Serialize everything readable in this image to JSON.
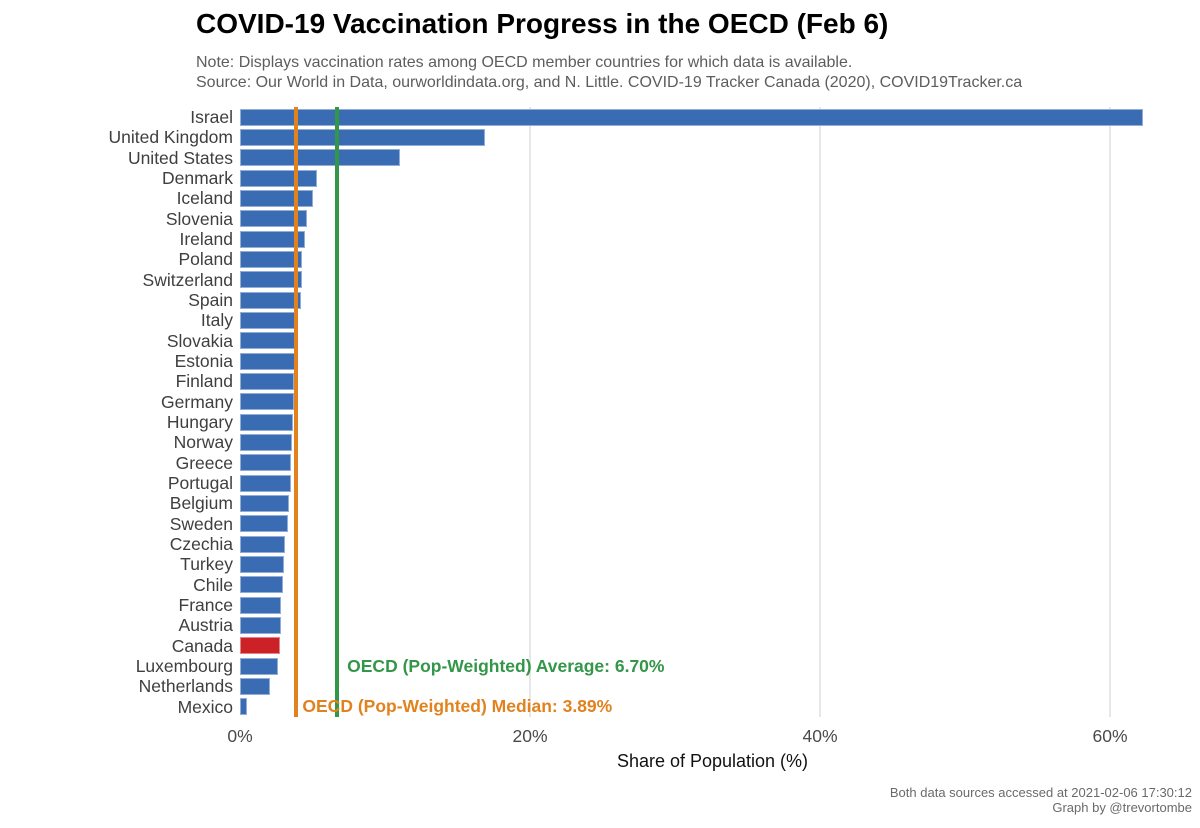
{
  "title": "COVID-19 Vaccination Progress in the OECD (Feb 6)",
  "note": "Note: Displays vaccination rates among OECD member countries for which data is available.",
  "source": "Source: Our World in Data, ourworldindata.org, and N. Little. COVID-19 Tracker Canada (2020), COVID19Tracker.ca",
  "caption": {
    "line1": "Both data sources accessed at 2021-02-06 17:30:12",
    "line2": "Graph by @trevortombe"
  },
  "chart_data": {
    "type": "bar",
    "orientation": "horizontal",
    "title": "COVID-19 Vaccination Progress in the OECD (Feb 6)",
    "xlabel": "Share of Population (%)",
    "ylabel": "",
    "xlim": [
      0,
      65.2
    ],
    "grid": "major vertical gridlines at 20/40/60 only, white background",
    "gridline_values": [
      20,
      40,
      60
    ],
    "xticks": [
      {
        "value": 0,
        "label": "0%"
      },
      {
        "value": 20,
        "label": "20%"
      },
      {
        "value": 40,
        "label": "40%"
      },
      {
        "value": 60,
        "label": "60%"
      }
    ],
    "bar_color": "#3a6cb4",
    "highlight_color": "#cc2127",
    "highlight_category": "Canada",
    "categories": [
      "Israel",
      "United Kingdom",
      "United States",
      "Denmark",
      "Iceland",
      "Slovenia",
      "Ireland",
      "Poland",
      "Switzerland",
      "Spain",
      "Italy",
      "Slovakia",
      "Estonia",
      "Finland",
      "Germany",
      "Hungary",
      "Norway",
      "Greece",
      "Portugal",
      "Belgium",
      "Sweden",
      "Czechia",
      "Turkey",
      "Chile",
      "France",
      "Austria",
      "Canada",
      "Luxembourg",
      "Netherlands",
      "Mexico"
    ],
    "values": [
      62.3,
      16.9,
      11.0,
      5.3,
      5.05,
      4.65,
      4.45,
      4.25,
      4.25,
      4.2,
      3.85,
      3.8,
      3.8,
      3.75,
      3.7,
      3.65,
      3.6,
      3.55,
      3.5,
      3.4,
      3.3,
      3.1,
      3.0,
      2.95,
      2.8,
      2.8,
      2.75,
      2.6,
      2.1,
      0.5
    ],
    "reference_lines": [
      {
        "name": "median",
        "value": 3.89,
        "color": "#e2821e",
        "label": "OECD (Pop-Weighted) Median: 3.89%"
      },
      {
        "name": "average",
        "value": 6.7,
        "color": "#339649",
        "label": "OECD (Pop-Weighted) Average: 6.70%"
      }
    ]
  }
}
